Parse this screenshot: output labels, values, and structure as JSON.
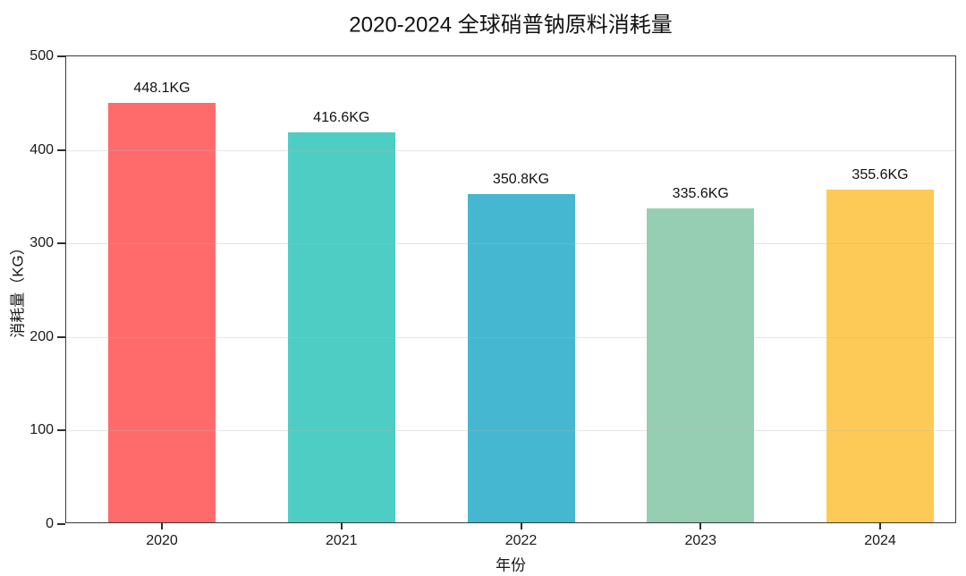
{
  "title": "2020-2024 全球硝普钠原料消耗量",
  "axes": {
    "xlabel": "年份",
    "ylabel": "消耗量（KG）"
  },
  "chart_data": {
    "type": "bar",
    "title": "2020-2024 全球硝普钠原料消耗量",
    "xlabel": "年份",
    "ylabel": "消耗量（KG）",
    "categories": [
      "2020",
      "2021",
      "2022",
      "2023",
      "2024"
    ],
    "values": [
      448.1,
      416.6,
      350.8,
      335.6,
      355.6
    ],
    "value_labels": [
      "448.1KG",
      "416.6KG",
      "350.8KG",
      "335.6KG",
      "355.6KG"
    ],
    "bar_colors": [
      "#FF6B6B",
      "#4ECDC4",
      "#45B7D1",
      "#96CEB4",
      "#FECA57"
    ],
    "ylim": [
      0,
      500
    ],
    "yticks": [
      0,
      100,
      200,
      300,
      400,
      500
    ],
    "grid": "horizontal-light",
    "legend": "none"
  },
  "style_colors": {
    "axis_frame": "#3a3a3a",
    "tick": "#2f2f2f",
    "text": "#1a1a1a",
    "grid": "#e0e0e0",
    "background": "#ffffff"
  }
}
